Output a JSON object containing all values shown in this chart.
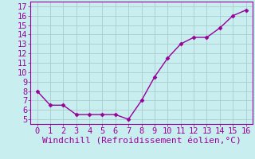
{
  "x": [
    0,
    1,
    2,
    3,
    4,
    5,
    6,
    7,
    8,
    9,
    10,
    11,
    12,
    13,
    14,
    15,
    16
  ],
  "y": [
    8.0,
    6.5,
    6.5,
    5.5,
    5.5,
    5.5,
    5.5,
    5.0,
    7.0,
    9.5,
    11.5,
    13.0,
    13.7,
    13.7,
    14.7,
    16.0,
    16.6
  ],
  "line_color": "#990099",
  "marker": "D",
  "marker_size": 2.5,
  "background_color": "#c8eef0",
  "grid_color": "#aacccc",
  "xlabel": "Windchill (Refroidissement éolien,°C)",
  "xlabel_color": "#990099",
  "tick_color": "#990099",
  "spine_color": "#990099",
  "xlim": [
    -0.5,
    16.5
  ],
  "ylim": [
    4.5,
    17.5
  ],
  "xticks": [
    0,
    1,
    2,
    3,
    4,
    5,
    6,
    7,
    8,
    9,
    10,
    11,
    12,
    13,
    14,
    15,
    16
  ],
  "yticks": [
    5,
    6,
    7,
    8,
    9,
    10,
    11,
    12,
    13,
    14,
    15,
    16,
    17
  ],
  "tick_fontsize": 7.5,
  "xlabel_fontsize": 8
}
